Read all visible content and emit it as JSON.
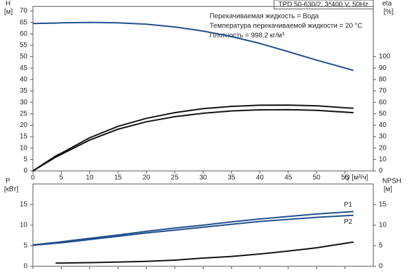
{
  "chart_data": [
    {
      "type": "line",
      "title": "TPD 50-630/2, 3*400 V, 50Hz",
      "annotations": [
        "Перекачиваемая жидкость = Вода",
        "Температура перекачиваемой жидкости = 20 °C",
        "Плотность = 998.2 кг/м³"
      ],
      "y_label": [
        "H",
        "[м]"
      ],
      "y2_label": [
        "eta",
        "[%]"
      ],
      "x_label": "Q [м³/ч]",
      "x": [
        0,
        4,
        5,
        10,
        15,
        20,
        25,
        30,
        35,
        40,
        45,
        50,
        56.5
      ],
      "xlim": [
        0,
        60
      ],
      "xticks": [
        0,
        5,
        10,
        15,
        20,
        25,
        30,
        35,
        40,
        45,
        50,
        55
      ],
      "ylim": [
        0,
        72
      ],
      "yticks": [
        0,
        5,
        10,
        15,
        20,
        25,
        30,
        35,
        40,
        45,
        50,
        55,
        60,
        65,
        70
      ],
      "y2lim": [
        0,
        144
      ],
      "y2ticks": [
        0,
        10,
        20,
        30,
        40,
        50,
        60,
        70,
        80,
        90,
        100
      ],
      "series": [
        {
          "color": "#1f4e8c",
          "axis": "y",
          "values": [
            64.5,
            64.7,
            64.8,
            65,
            64.8,
            64.2,
            63,
            61.2,
            58.8,
            55.8,
            52.2,
            48.5,
            44
          ]
        },
        {
          "color": "#111111",
          "axis": "y2",
          "values": [
            0,
            13,
            15.5,
            29,
            39,
            46,
            51,
            54.5,
            56.5,
            57.5,
            57.6,
            57,
            54.8
          ]
        },
        {
          "color": "#111111",
          "axis": "y2",
          "values": [
            0,
            12,
            14.5,
            27,
            36.5,
            43,
            47.5,
            50.5,
            52.5,
            53.5,
            53.6,
            53,
            51
          ]
        }
      ]
    },
    {
      "type": "line",
      "y_label": [
        "P",
        "[кВт]"
      ],
      "y2_label": [
        "NPSH",
        "[м]"
      ],
      "x": [
        0,
        4,
        5,
        10,
        15,
        20,
        25,
        30,
        35,
        40,
        45,
        50,
        56.5
      ],
      "xlim": [
        0,
        60
      ],
      "xticks": [
        0,
        5,
        10,
        15,
        20,
        25,
        30,
        35,
        40,
        45,
        50,
        55
      ],
      "ylim": [
        0,
        20
      ],
      "yticks": [
        0,
        5,
        10,
        15
      ],
      "y2lim": [
        0,
        20
      ],
      "y2ticks": [
        0,
        5,
        10,
        15
      ],
      "series": [
        {
          "name": "P1",
          "color": "#1f4e8c",
          "axis": "y",
          "values": [
            5.2,
            5.8,
            5.95,
            6.8,
            7.6,
            8.5,
            9.3,
            10,
            10.8,
            11.5,
            12.1,
            12.7,
            13.3
          ]
        },
        {
          "name": "P2",
          "color": "#1f4e8c",
          "axis": "y",
          "values": [
            5.1,
            5.6,
            5.7,
            6.5,
            7.3,
            8.1,
            8.8,
            9.5,
            10.2,
            10.9,
            11.4,
            11.9,
            12.4
          ]
        },
        {
          "color": "#111111",
          "axis": "y2",
          "values": [
            null,
            0.8,
            0.8,
            0.9,
            1.05,
            1.2,
            1.5,
            2,
            2.4,
            3,
            3.7,
            4.5,
            5.9
          ]
        }
      ]
    }
  ]
}
